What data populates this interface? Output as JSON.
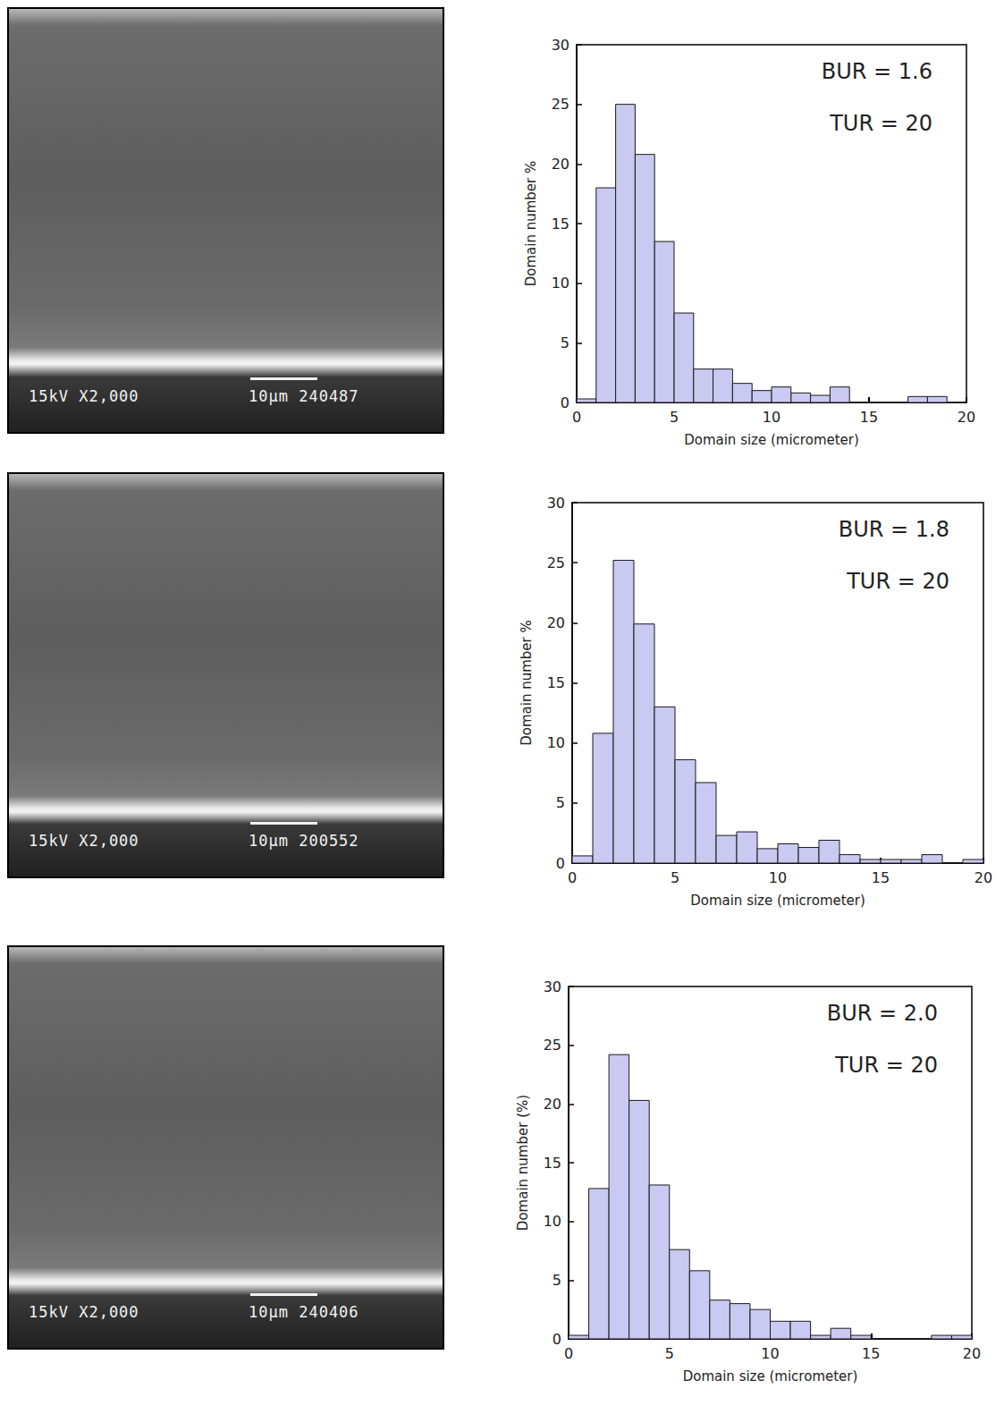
{
  "chart_data": [
    {
      "type": "histogram",
      "bins": [
        0,
        1,
        2,
        3,
        4,
        5,
        6,
        7,
        8,
        9,
        10,
        11,
        12,
        13,
        14,
        15,
        16,
        17,
        18,
        19,
        20
      ],
      "values": [
        0.3,
        18,
        25,
        20.8,
        13.5,
        7.5,
        2.8,
        2.8,
        1.6,
        1.0,
        1.3,
        0.8,
        0.6,
        1.3,
        0,
        0,
        0,
        0.5,
        0.5,
        0
      ],
      "color": "#c9c9f2",
      "xlabel": "Domain size (micrometer)",
      "ylabel": "Domain number %",
      "xlim": [
        0,
        20
      ],
      "ylim": [
        0,
        30
      ],
      "xticks": [
        0,
        5,
        10,
        15,
        20
      ],
      "yticks": [
        0,
        5,
        10,
        15,
        20,
        25,
        30
      ],
      "annotations": [
        "BUR = 1.6",
        "TUR = 20"
      ],
      "grid": false
    },
    {
      "type": "histogram",
      "bins": [
        0,
        1,
        2,
        3,
        4,
        5,
        6,
        7,
        8,
        9,
        10,
        11,
        12,
        13,
        14,
        15,
        16,
        17,
        18,
        19,
        20
      ],
      "values": [
        0.6,
        10.8,
        25.2,
        19.9,
        13,
        8.6,
        6.7,
        2.3,
        2.6,
        1.2,
        1.6,
        1.3,
        1.9,
        0.7,
        0.3,
        0.3,
        0.3,
        0.7,
        0,
        0.3
      ],
      "color": "#c9c9f2",
      "xlabel": "Domain size (micrometer)",
      "ylabel": "Domain number %",
      "xlim": [
        0,
        20
      ],
      "ylim": [
        0,
        30
      ],
      "xticks": [
        0,
        5,
        10,
        15,
        20
      ],
      "yticks": [
        0,
        5,
        10,
        15,
        20,
        25,
        30
      ],
      "annotations": [
        "BUR = 1.8",
        "TUR = 20"
      ],
      "grid": false
    },
    {
      "type": "histogram",
      "bins": [
        0,
        1,
        2,
        3,
        4,
        5,
        6,
        7,
        8,
        9,
        10,
        11,
        12,
        13,
        14,
        15,
        16,
        17,
        18,
        19,
        20
      ],
      "values": [
        0.3,
        12.8,
        24.2,
        20.3,
        13.1,
        7.6,
        5.8,
        3.3,
        3.0,
        2.5,
        1.5,
        1.5,
        0.3,
        0.9,
        0.3,
        0,
        0,
        0,
        0.3,
        0.3
      ],
      "color": "#c9c9f2",
      "xlabel": "Domain size (micrometer)",
      "ylabel": "Domain number (%)",
      "xlim": [
        0,
        20
      ],
      "ylim": [
        0,
        30
      ],
      "xticks": [
        0,
        5,
        10,
        15,
        20
      ],
      "yticks": [
        0,
        5,
        10,
        15,
        20,
        25,
        30
      ],
      "annotations": [
        "BUR = 2.0",
        "TUR = 20"
      ],
      "grid": false
    }
  ],
  "micrographs": [
    {
      "left_text": "15kV X2,000",
      "scale_text": "10µm",
      "id_text": "240487"
    },
    {
      "left_text": "15kV X2,000",
      "scale_text": "10µm",
      "id_text": "200552"
    },
    {
      "left_text": "15kV X2,000",
      "scale_text": "10µm",
      "id_text": "240406"
    }
  ]
}
